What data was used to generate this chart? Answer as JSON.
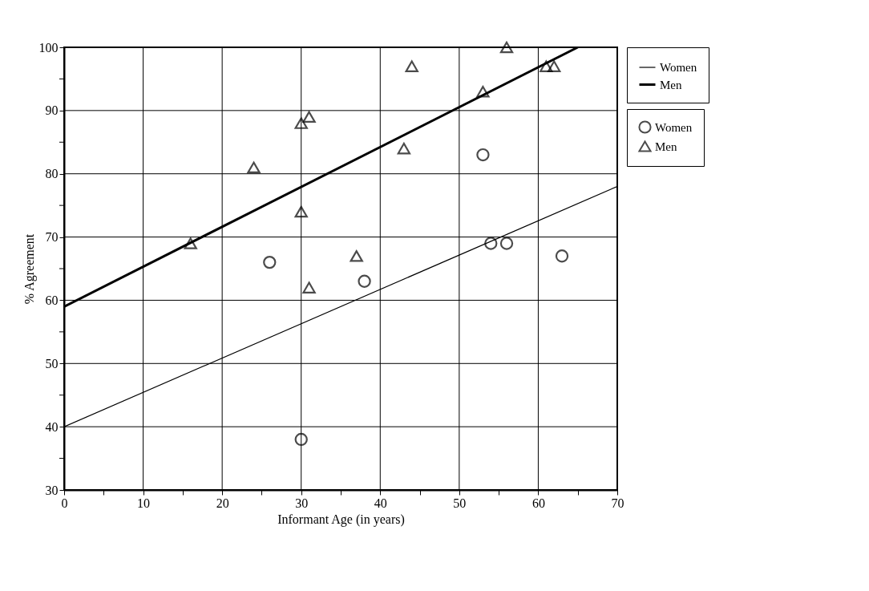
{
  "chart_data": {
    "type": "scatter",
    "xlabel": "Informant Age (in years)",
    "ylabel": "% Agreement",
    "xlim": [
      0,
      70
    ],
    "ylim": [
      30,
      100
    ],
    "xticks": [
      0,
      {
        "value": 5,
        "label": null
      },
      10,
      {
        "value": 15,
        "label": null
      },
      20,
      {
        "value": 25,
        "label": null
      },
      30,
      {
        "value": 35,
        "label": null
      },
      40,
      {
        "value": 45,
        "label": null
      },
      50,
      {
        "value": 55,
        "label": null
      },
      60,
      {
        "value": 65,
        "label": null
      },
      70
    ],
    "yticks": [
      30,
      {
        "value": 35,
        "label": null
      },
      40,
      {
        "value": 45,
        "label": null
      },
      50,
      {
        "value": 55,
        "label": null
      },
      60,
      {
        "value": 65,
        "label": null
      },
      70,
      {
        "value": 75,
        "label": null
      },
      80,
      {
        "value": 85,
        "label": null
      },
      90,
      {
        "value": 95,
        "label": null
      },
      100
    ],
    "grid": true,
    "legend": "right",
    "series": [
      {
        "name": "Women",
        "marker": "circle",
        "color": "#000000",
        "x": [
          26,
          30,
          38,
          53,
          54,
          56,
          63
        ],
        "values": [
          66,
          38,
          63,
          83,
          69,
          69,
          67
        ]
      },
      {
        "name": "Women",
        "type": "line",
        "color": "#000000",
        "x": [
          0,
          70
        ],
        "values": [
          40,
          78
        ]
      },
      {
        "name": "Men",
        "type": "line",
        "color": "#000000",
        "x": [
          0,
          65
        ],
        "values": [
          59,
          100
        ]
      },
      {
        "name": "Men",
        "marker": "triangle",
        "color": "#000000",
        "x": [
          16,
          24,
          30,
          30,
          31,
          31,
          37,
          43,
          44,
          53,
          56,
          61,
          62
        ],
        "values": [
          69,
          81,
          88,
          74,
          89,
          62,
          67,
          84,
          97,
          93,
          100,
          97,
          97
        ]
      }
    ]
  }
}
